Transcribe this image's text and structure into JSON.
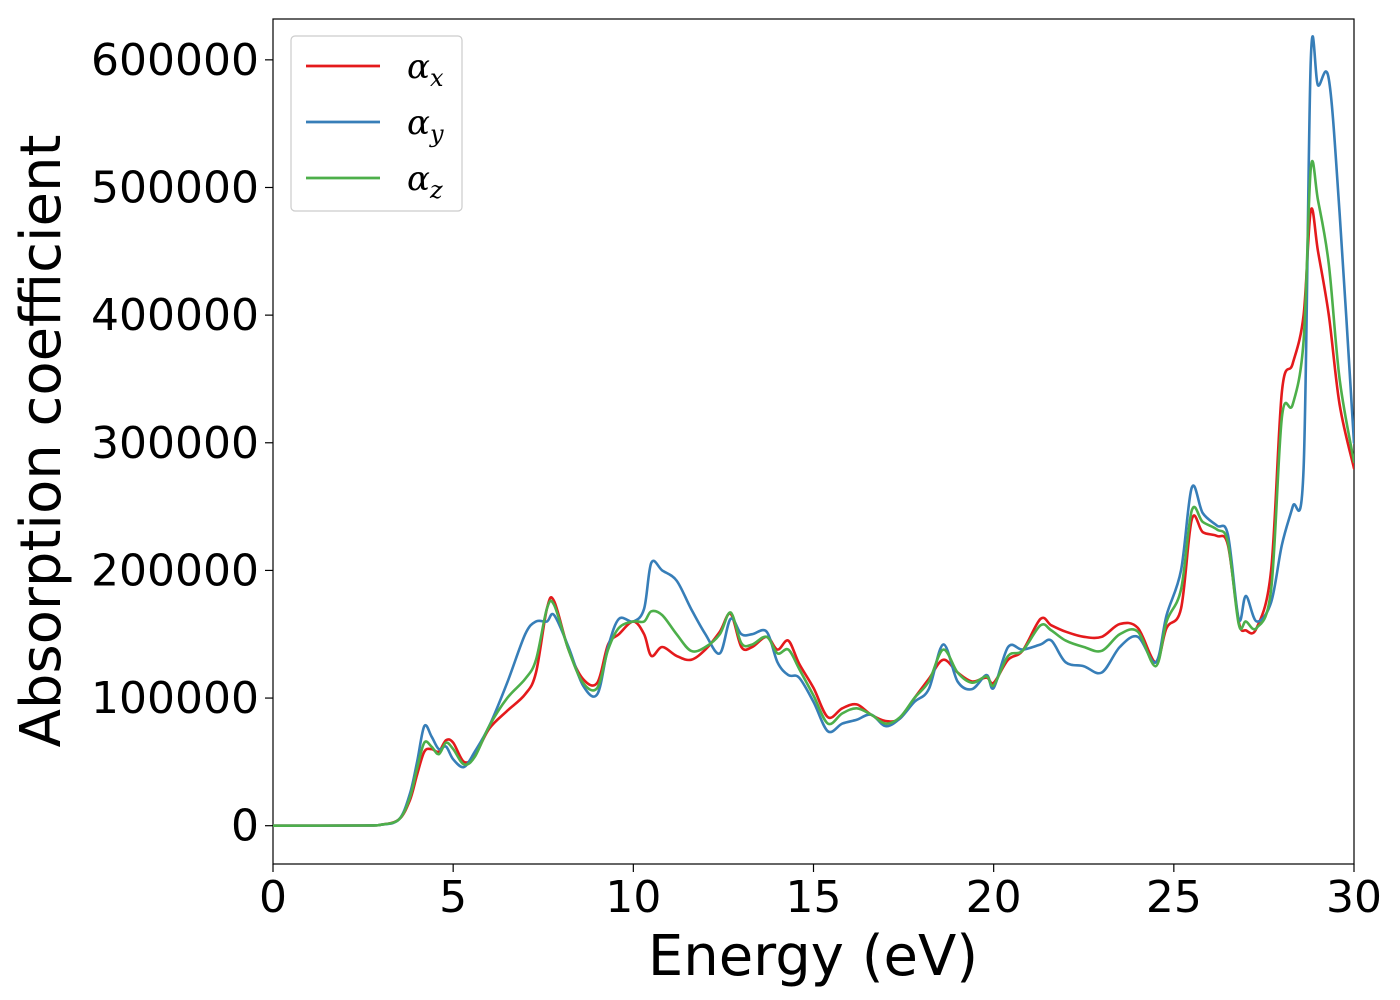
{
  "chart_data": {
    "type": "line",
    "title": "",
    "xlabel": "Energy (eV)",
    "ylabel": "Absorption coefficient",
    "xlim": [
      0,
      30
    ],
    "ylim": [
      -30000,
      632000
    ],
    "x_ticks": [
      0,
      5,
      10,
      15,
      20,
      25,
      30
    ],
    "y_ticks": [
      0,
      100000,
      200000,
      300000,
      400000,
      500000,
      600000
    ],
    "x_tick_labels": [
      "0",
      "5",
      "10",
      "15",
      "20",
      "25",
      "30"
    ],
    "y_tick_labels": [
      "0",
      "100000",
      "200000",
      "300000",
      "400000",
      "500000",
      "600000"
    ],
    "grid": false,
    "legend_position": "top-left",
    "x": [
      0,
      2.5,
      3.0,
      3.5,
      3.8,
      4.0,
      4.2,
      4.4,
      4.6,
      4.8,
      5.0,
      5.3,
      5.6,
      6.0,
      6.5,
      7.0,
      7.3,
      7.6,
      7.8,
      8.2,
      8.6,
      9.0,
      9.3,
      9.6,
      10.0,
      10.3,
      10.5,
      10.8,
      11.2,
      11.6,
      12.0,
      12.4,
      12.7,
      13.0,
      13.3,
      13.7,
      14.0,
      14.3,
      14.6,
      15.0,
      15.4,
      15.8,
      16.2,
      16.6,
      17.0,
      17.4,
      17.8,
      18.2,
      18.6,
      19.0,
      19.4,
      19.8,
      20.0,
      20.4,
      20.8,
      21.3,
      21.6,
      22.0,
      22.5,
      23.0,
      23.5,
      24.0,
      24.5,
      24.8,
      25.2,
      25.5,
      25.8,
      26.2,
      26.5,
      26.8,
      27.0,
      27.3,
      27.7,
      28.0,
      28.3,
      28.6,
      28.8,
      29.0,
      29.3,
      29.6,
      30.0
    ],
    "series": [
      {
        "name": "αx",
        "color": "#e41a1c",
        "values": [
          0,
          200,
          800,
          5000,
          20000,
          40000,
          58000,
          60000,
          58000,
          67000,
          65000,
          50000,
          55000,
          76000,
          90000,
          103000,
          120000,
          170000,
          176000,
          138000,
          115000,
          112000,
          142000,
          150000,
          160000,
          150000,
          133000,
          140000,
          133000,
          130000,
          138000,
          152000,
          166000,
          140000,
          140000,
          148000,
          138000,
          145000,
          127000,
          108000,
          85000,
          92000,
          95000,
          87000,
          82000,
          84000,
          100000,
          115000,
          130000,
          120000,
          113000,
          116000,
          112000,
          130000,
          137000,
          162000,
          157000,
          152000,
          148000,
          148000,
          158000,
          155000,
          128000,
          155000,
          170000,
          240000,
          230000,
          227000,
          220000,
          160000,
          153000,
          155000,
          200000,
          340000,
          362000,
          400000,
          482000,
          450000,
          400000,
          330000,
          280000
        ]
      },
      {
        "name": "αy",
        "color": "#377eb8",
        "values": [
          0,
          200,
          800,
          5000,
          25000,
          50000,
          78000,
          70000,
          60000,
          62000,
          52000,
          46000,
          58000,
          78000,
          112000,
          150000,
          160000,
          160000,
          165000,
          140000,
          110000,
          103000,
          140000,
          162000,
          160000,
          170000,
          206000,
          200000,
          192000,
          170000,
          150000,
          135000,
          162000,
          150000,
          150000,
          152000,
          128000,
          118000,
          116000,
          97000,
          74000,
          80000,
          83000,
          87000,
          78000,
          84000,
          97000,
          107000,
          142000,
          113000,
          107000,
          118000,
          108000,
          140000,
          138000,
          142000,
          145000,
          128000,
          125000,
          120000,
          140000,
          148000,
          128000,
          165000,
          200000,
          265000,
          245000,
          235000,
          228000,
          162000,
          180000,
          160000,
          175000,
          220000,
          250000,
          280000,
          600000,
          580000,
          585000,
          480000,
          300000
        ]
      },
      {
        "name": "αz",
        "color": "#4daf4a",
        "values": [
          0,
          200,
          800,
          5000,
          22000,
          45000,
          65000,
          62000,
          56000,
          65000,
          60000,
          48000,
          54000,
          78000,
          100000,
          115000,
          130000,
          170000,
          173000,
          138000,
          112000,
          108000,
          138000,
          155000,
          160000,
          160000,
          168000,
          165000,
          150000,
          137000,
          140000,
          150000,
          167000,
          143000,
          142000,
          148000,
          135000,
          138000,
          123000,
          102000,
          80000,
          88000,
          92000,
          87000,
          80000,
          85000,
          100000,
          113000,
          138000,
          120000,
          112000,
          117000,
          110000,
          133000,
          137000,
          157000,
          153000,
          145000,
          140000,
          137000,
          150000,
          152000,
          125000,
          160000,
          185000,
          247000,
          238000,
          232000,
          222000,
          158000,
          160000,
          155000,
          185000,
          320000,
          330000,
          380000,
          515000,
          490000,
          440000,
          350000,
          285000
        ]
      }
    ]
  }
}
